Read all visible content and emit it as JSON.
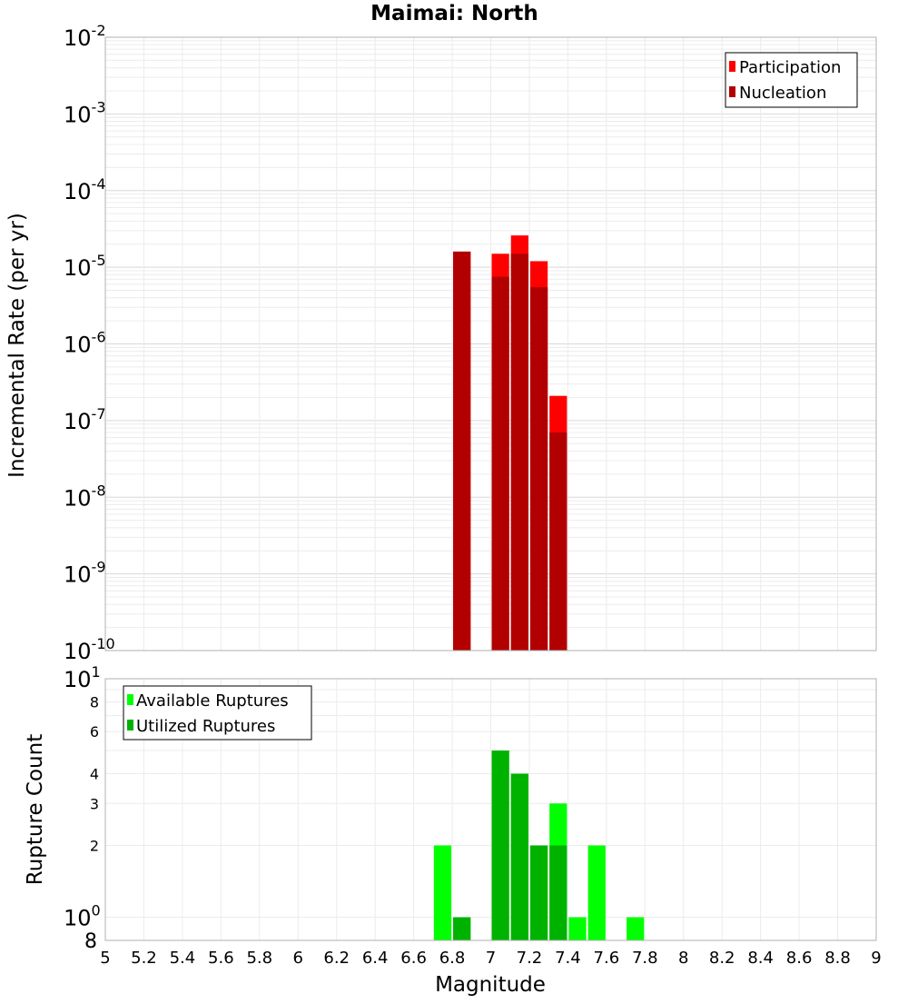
{
  "chart_data": [
    {
      "type": "bar",
      "title": "Maimai: North",
      "ylabel": "Incremental Rate (per yr)",
      "yscale": "log",
      "ylim": [
        1e-10,
        0.01
      ],
      "xlim": [
        5,
        9
      ],
      "bin_width": 0.1,
      "y_tick_exponents": [
        "-10",
        "-9",
        "-8",
        "-7",
        "-6",
        "-5",
        "-4",
        "-3",
        "-2"
      ],
      "legend": {
        "position": "top-right",
        "entries": [
          "Participation",
          "Nucleation"
        ]
      },
      "series": [
        {
          "name": "Participation",
          "color": "#ff0000",
          "x": [
            6.85,
            7.05,
            7.15,
            7.25,
            7.35
          ],
          "values": [
            1.6e-05,
            1.5e-05,
            2.6e-05,
            1.2e-05,
            2.1e-07
          ]
        },
        {
          "name": "Nucleation",
          "color": "#b20000",
          "x": [
            6.85,
            7.05,
            7.15,
            7.25,
            7.35
          ],
          "values": [
            1.6e-05,
            7.5e-06,
            1.5e-05,
            5.5e-06,
            7e-08
          ]
        }
      ]
    },
    {
      "type": "bar",
      "xlabel": "Magnitude",
      "ylabel": "Rupture Count",
      "yscale": "log",
      "ylim": [
        0.8,
        10
      ],
      "xlim": [
        5,
        9
      ],
      "bin_width": 0.1,
      "x_ticks": [
        "5",
        "5.2",
        "5.4",
        "5.6",
        "5.8",
        "6",
        "6.2",
        "6.4",
        "6.6",
        "6.8",
        "7",
        "7.2",
        "7.4",
        "7.6",
        "7.8",
        "8",
        "8.2",
        "8.4",
        "8.6",
        "8.8",
        "9"
      ],
      "y_ticks_minor": [
        "2",
        "3",
        "4",
        "6",
        "8"
      ],
      "y_tick_base": "10",
      "y_tick_exponents": [
        "0",
        "1"
      ],
      "y_tick_bottom": "8",
      "legend": {
        "position": "top-left",
        "entries": [
          "Available Ruptures",
          "Utilized Ruptures"
        ]
      },
      "series": [
        {
          "name": "Available Ruptures",
          "color": "#00ff00",
          "x": [
            6.75,
            6.85,
            7.05,
            7.15,
            7.25,
            7.35,
            7.45,
            7.55,
            7.75
          ],
          "values": [
            2,
            1,
            5,
            4,
            2,
            3,
            1,
            2,
            1
          ]
        },
        {
          "name": "Utilized Ruptures",
          "color": "#00b200",
          "x": [
            6.85,
            7.05,
            7.15,
            7.25,
            7.35
          ],
          "values": [
            1,
            5,
            4,
            2,
            2
          ]
        }
      ]
    }
  ]
}
